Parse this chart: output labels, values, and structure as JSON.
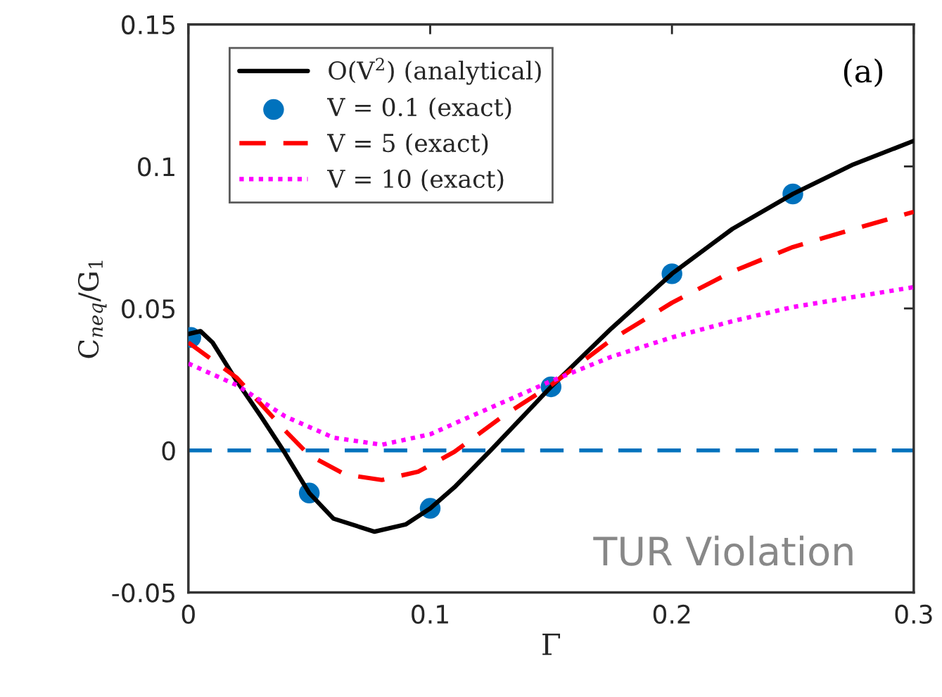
{
  "chart_data": {
    "type": "line",
    "xlabel": "Γ",
    "ylabel": "C$_{neq}$/G$_{1}$",
    "xlim": [
      0,
      0.3
    ],
    "xticks": [
      0,
      0.1,
      0.2,
      0.3
    ],
    "ylim": [
      -0.05,
      0.15
    ],
    "yticks": [
      -0.05,
      0,
      0.05,
      0.1,
      0.15
    ],
    "grid": false,
    "legend": "top left",
    "annotations": [
      "TUR Violation",
      "(a)"
    ],
    "ref_lines": [
      {
        "axis": "y",
        "value": 0,
        "color": "#0072bd",
        "line_style": "dashed"
      }
    ],
    "series": [
      {
        "name": "O(V$^{2}$) (analytical)",
        "color": "#000000",
        "line_style": "solid",
        "marker": "none",
        "x": [
          0,
          0.005,
          0.01,
          0.02,
          0.03,
          0.04,
          0.05,
          0.06,
          0.077,
          0.09,
          0.1,
          0.11,
          0.125,
          0.15,
          0.175,
          0.2,
          0.225,
          0.25,
          0.275,
          0.3
        ],
        "values": [
          0.041,
          0.042,
          0.038,
          0.0244,
          0.012,
          -0.001,
          -0.015,
          -0.024,
          -0.0286,
          -0.026,
          -0.0204,
          -0.013,
          0,
          0.0224,
          0.043,
          0.0622,
          0.078,
          0.0903,
          0.1007,
          0.109
        ]
      },
      {
        "name": "V = 0.1 (exact)",
        "type": "scatter",
        "color": "#0072bd",
        "marker": "circle",
        "x": [
          0.001,
          0.05,
          0.1,
          0.15,
          0.2,
          0.25
        ],
        "values": [
          0.0398,
          -0.015,
          -0.0204,
          0.0224,
          0.0622,
          0.0903
        ]
      },
      {
        "name": "V = 5 (exact)",
        "color": "#ff0000",
        "line_style": "dashed",
        "marker": "none",
        "x": [
          0,
          0.02,
          0.04,
          0.05,
          0.065,
          0.08,
          0.095,
          0.11,
          0.13,
          0.15,
          0.175,
          0.2,
          0.225,
          0.25,
          0.275,
          0.3
        ],
        "values": [
          0.038,
          0.0256,
          0.007,
          -0.0017,
          -0.0085,
          -0.0104,
          -0.0075,
          -0.0005,
          0.012,
          0.023,
          0.039,
          0.052,
          0.063,
          0.0716,
          0.0779,
          0.084
        ]
      },
      {
        "name": "V = 10 (exact)",
        "color": "#ff00ff",
        "line_style": "dotted",
        "marker": "none",
        "x": [
          0,
          0.02,
          0.04,
          0.06,
          0.08,
          0.1,
          0.12,
          0.15,
          0.175,
          0.2,
          0.225,
          0.25,
          0.275,
          0.3
        ],
        "values": [
          0.0306,
          0.023,
          0.012,
          0.0045,
          0.002,
          0.0057,
          0.0132,
          0.0244,
          0.033,
          0.0398,
          0.0455,
          0.0505,
          0.054,
          0.0575
        ]
      }
    ]
  }
}
